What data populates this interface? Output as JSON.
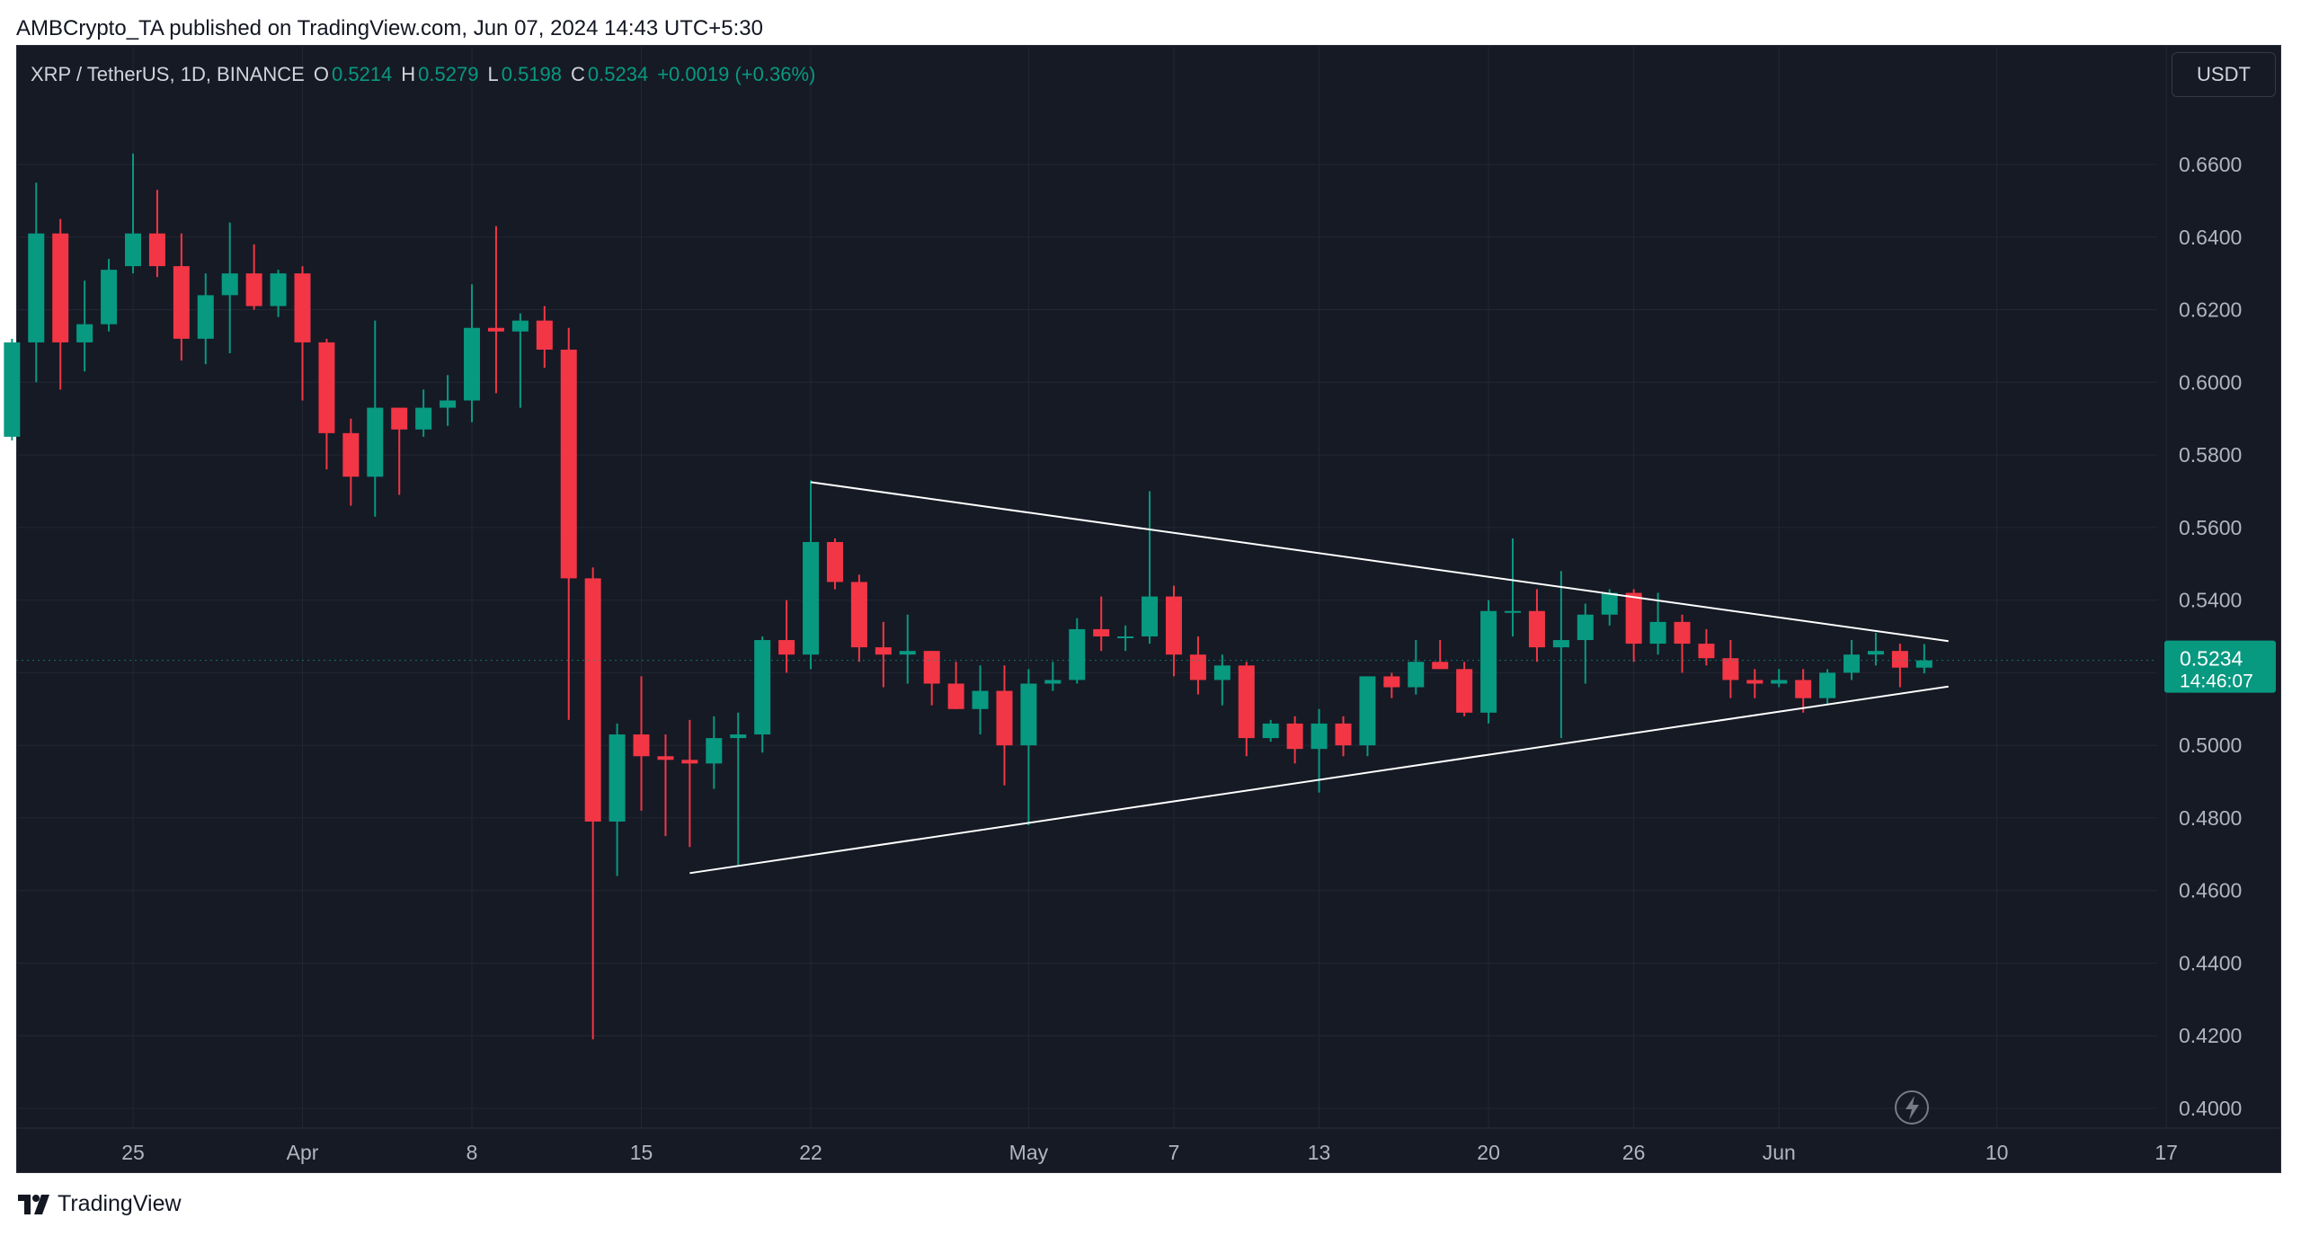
{
  "header": {
    "publisher_line": "AMBCrypto_TA published on TradingView.com, Jun 07, 2024 14:43 UTC+5:30"
  },
  "legend": {
    "symbol": "XRP / TetherUS, 1D, BINANCE",
    "o_label": "O",
    "o_value": "0.5214",
    "h_label": "H",
    "h_value": "0.5279",
    "l_label": "L",
    "l_value": "0.5198",
    "c_label": "C",
    "c_value": "0.5234",
    "change": "+0.0019 (+0.36%)"
  },
  "currency_button": "USDT",
  "price_badge": {
    "price": "0.5234",
    "countdown": "14:46:07"
  },
  "footer": {
    "brand": "TradingView"
  },
  "colors": {
    "background": "#161a25",
    "grid": "#232733",
    "up": "#089981",
    "down": "#f23645",
    "axis_text": "#b2b5be",
    "trendline": "#ffffff"
  },
  "chart_data": {
    "type": "candlestick",
    "symbol": "XRP / TetherUS",
    "interval": "1D",
    "exchange": "BINANCE",
    "ylim": [
      0.39,
      0.675
    ],
    "y_ticks": [
      "0.6600",
      "0.6400",
      "0.6200",
      "0.6000",
      "0.5800",
      "0.5600",
      "0.5400",
      "0.5200",
      "0.5000",
      "0.4800",
      "0.4600",
      "0.4400",
      "0.4200",
      "0.4000"
    ],
    "x_ticks": [
      {
        "label": "25",
        "date": "2024-03-25"
      },
      {
        "label": "Apr",
        "date": "2024-04-01"
      },
      {
        "label": "8",
        "date": "2024-04-08"
      },
      {
        "label": "15",
        "date": "2024-04-15"
      },
      {
        "label": "22",
        "date": "2024-04-22"
      },
      {
        "label": "May",
        "date": "2024-05-01"
      },
      {
        "label": "7",
        "date": "2024-05-07"
      },
      {
        "label": "13",
        "date": "2024-05-13"
      },
      {
        "label": "20",
        "date": "2024-05-20"
      },
      {
        "label": "26",
        "date": "2024-05-26"
      },
      {
        "label": "Jun",
        "date": "2024-06-01"
      },
      {
        "label": "10",
        "date": "2024-06-10"
      },
      {
        "label": "17",
        "date": "2024-06-17"
      }
    ],
    "candles": [
      {
        "date": "2024-03-20",
        "o": 0.585,
        "h": 0.612,
        "l": 0.584,
        "c": 0.611
      },
      {
        "date": "2024-03-21",
        "o": 0.611,
        "h": 0.655,
        "l": 0.6,
        "c": 0.641
      },
      {
        "date": "2024-03-22",
        "o": 0.641,
        "h": 0.645,
        "l": 0.598,
        "c": 0.611
      },
      {
        "date": "2024-03-23",
        "o": 0.611,
        "h": 0.628,
        "l": 0.603,
        "c": 0.616
      },
      {
        "date": "2024-03-24",
        "o": 0.616,
        "h": 0.634,
        "l": 0.614,
        "c": 0.631
      },
      {
        "date": "2024-03-25",
        "o": 0.632,
        "h": 0.663,
        "l": 0.63,
        "c": 0.641
      },
      {
        "date": "2024-03-26",
        "o": 0.641,
        "h": 0.653,
        "l": 0.629,
        "c": 0.632
      },
      {
        "date": "2024-03-27",
        "o": 0.632,
        "h": 0.641,
        "l": 0.606,
        "c": 0.612
      },
      {
        "date": "2024-03-28",
        "o": 0.612,
        "h": 0.63,
        "l": 0.605,
        "c": 0.624
      },
      {
        "date": "2024-03-29",
        "o": 0.624,
        "h": 0.644,
        "l": 0.608,
        "c": 0.63
      },
      {
        "date": "2024-03-30",
        "o": 0.63,
        "h": 0.638,
        "l": 0.62,
        "c": 0.621
      },
      {
        "date": "2024-03-31",
        "o": 0.621,
        "h": 0.631,
        "l": 0.618,
        "c": 0.63
      },
      {
        "date": "2024-04-01",
        "o": 0.63,
        "h": 0.632,
        "l": 0.595,
        "c": 0.611
      },
      {
        "date": "2024-04-02",
        "o": 0.611,
        "h": 0.612,
        "l": 0.576,
        "c": 0.586
      },
      {
        "date": "2024-04-03",
        "o": 0.586,
        "h": 0.59,
        "l": 0.566,
        "c": 0.574
      },
      {
        "date": "2024-04-04",
        "o": 0.574,
        "h": 0.617,
        "l": 0.563,
        "c": 0.593
      },
      {
        "date": "2024-04-05",
        "o": 0.593,
        "h": 0.593,
        "l": 0.569,
        "c": 0.587
      },
      {
        "date": "2024-04-06",
        "o": 0.587,
        "h": 0.598,
        "l": 0.585,
        "c": 0.593
      },
      {
        "date": "2024-04-07",
        "o": 0.593,
        "h": 0.602,
        "l": 0.588,
        "c": 0.595
      },
      {
        "date": "2024-04-08",
        "o": 0.595,
        "h": 0.627,
        "l": 0.589,
        "c": 0.615
      },
      {
        "date": "2024-04-09",
        "o": 0.615,
        "h": 0.643,
        "l": 0.597,
        "c": 0.614
      },
      {
        "date": "2024-04-10",
        "o": 0.614,
        "h": 0.619,
        "l": 0.593,
        "c": 0.617
      },
      {
        "date": "2024-04-11",
        "o": 0.617,
        "h": 0.621,
        "l": 0.604,
        "c": 0.609
      },
      {
        "date": "2024-04-12",
        "o": 0.609,
        "h": 0.615,
        "l": 0.507,
        "c": 0.546
      },
      {
        "date": "2024-04-13",
        "o": 0.546,
        "h": 0.549,
        "l": 0.419,
        "c": 0.479
      },
      {
        "date": "2024-04-14",
        "o": 0.479,
        "h": 0.506,
        "l": 0.464,
        "c": 0.503
      },
      {
        "date": "2024-04-15",
        "o": 0.503,
        "h": 0.519,
        "l": 0.482,
        "c": 0.497
      },
      {
        "date": "2024-04-16",
        "o": 0.497,
        "h": 0.503,
        "l": 0.475,
        "c": 0.496
      },
      {
        "date": "2024-04-17",
        "o": 0.496,
        "h": 0.507,
        "l": 0.472,
        "c": 0.495
      },
      {
        "date": "2024-04-18",
        "o": 0.495,
        "h": 0.508,
        "l": 0.488,
        "c": 0.502
      },
      {
        "date": "2024-04-19",
        "o": 0.502,
        "h": 0.509,
        "l": 0.467,
        "c": 0.503
      },
      {
        "date": "2024-04-20",
        "o": 0.503,
        "h": 0.53,
        "l": 0.498,
        "c": 0.529
      },
      {
        "date": "2024-04-21",
        "o": 0.529,
        "h": 0.54,
        "l": 0.52,
        "c": 0.525
      },
      {
        "date": "2024-04-22",
        "o": 0.525,
        "h": 0.573,
        "l": 0.521,
        "c": 0.556
      },
      {
        "date": "2024-04-23",
        "o": 0.556,
        "h": 0.557,
        "l": 0.543,
        "c": 0.545
      },
      {
        "date": "2024-04-24",
        "o": 0.545,
        "h": 0.547,
        "l": 0.523,
        "c": 0.527
      },
      {
        "date": "2024-04-25",
        "o": 0.527,
        "h": 0.534,
        "l": 0.516,
        "c": 0.525
      },
      {
        "date": "2024-04-26",
        "o": 0.525,
        "h": 0.536,
        "l": 0.517,
        "c": 0.526
      },
      {
        "date": "2024-04-27",
        "o": 0.526,
        "h": 0.526,
        "l": 0.511,
        "c": 0.517
      },
      {
        "date": "2024-04-28",
        "o": 0.517,
        "h": 0.523,
        "l": 0.51,
        "c": 0.51
      },
      {
        "date": "2024-04-29",
        "o": 0.51,
        "h": 0.522,
        "l": 0.503,
        "c": 0.515
      },
      {
        "date": "2024-04-30",
        "o": 0.515,
        "h": 0.522,
        "l": 0.489,
        "c": 0.5
      },
      {
        "date": "2024-05-01",
        "o": 0.5,
        "h": 0.521,
        "l": 0.478,
        "c": 0.517
      },
      {
        "date": "2024-05-02",
        "o": 0.517,
        "h": 0.523,
        "l": 0.515,
        "c": 0.518
      },
      {
        "date": "2024-05-03",
        "o": 0.518,
        "h": 0.535,
        "l": 0.517,
        "c": 0.532
      },
      {
        "date": "2024-05-04",
        "o": 0.532,
        "h": 0.541,
        "l": 0.526,
        "c": 0.53
      },
      {
        "date": "2024-05-05",
        "o": 0.53,
        "h": 0.533,
        "l": 0.526,
        "c": 0.53
      },
      {
        "date": "2024-05-06",
        "o": 0.53,
        "h": 0.57,
        "l": 0.528,
        "c": 0.541
      },
      {
        "date": "2024-05-07",
        "o": 0.541,
        "h": 0.544,
        "l": 0.519,
        "c": 0.525
      },
      {
        "date": "2024-05-08",
        "o": 0.525,
        "h": 0.53,
        "l": 0.514,
        "c": 0.518
      },
      {
        "date": "2024-05-09",
        "o": 0.518,
        "h": 0.525,
        "l": 0.511,
        "c": 0.522
      },
      {
        "date": "2024-05-10",
        "o": 0.522,
        "h": 0.523,
        "l": 0.497,
        "c": 0.502
      },
      {
        "date": "2024-05-11",
        "o": 0.502,
        "h": 0.507,
        "l": 0.501,
        "c": 0.506
      },
      {
        "date": "2024-05-12",
        "o": 0.506,
        "h": 0.508,
        "l": 0.495,
        "c": 0.499
      },
      {
        "date": "2024-05-13",
        "o": 0.499,
        "h": 0.51,
        "l": 0.487,
        "c": 0.506
      },
      {
        "date": "2024-05-14",
        "o": 0.506,
        "h": 0.508,
        "l": 0.497,
        "c": 0.5
      },
      {
        "date": "2024-05-15",
        "o": 0.5,
        "h": 0.519,
        "l": 0.497,
        "c": 0.519
      },
      {
        "date": "2024-05-16",
        "o": 0.519,
        "h": 0.52,
        "l": 0.513,
        "c": 0.516
      },
      {
        "date": "2024-05-17",
        "o": 0.516,
        "h": 0.529,
        "l": 0.514,
        "c": 0.523
      },
      {
        "date": "2024-05-18",
        "o": 0.523,
        "h": 0.529,
        "l": 0.521,
        "c": 0.521
      },
      {
        "date": "2024-05-19",
        "o": 0.521,
        "h": 0.523,
        "l": 0.508,
        "c": 0.509
      },
      {
        "date": "2024-05-20",
        "o": 0.509,
        "h": 0.54,
        "l": 0.506,
        "c": 0.537
      },
      {
        "date": "2024-05-21",
        "o": 0.537,
        "h": 0.557,
        "l": 0.53,
        "c": 0.537
      },
      {
        "date": "2024-05-22",
        "o": 0.537,
        "h": 0.543,
        "l": 0.523,
        "c": 0.527
      },
      {
        "date": "2024-05-23",
        "o": 0.527,
        "h": 0.548,
        "l": 0.502,
        "c": 0.529
      },
      {
        "date": "2024-05-24",
        "o": 0.529,
        "h": 0.539,
        "l": 0.517,
        "c": 0.536
      },
      {
        "date": "2024-05-25",
        "o": 0.536,
        "h": 0.543,
        "l": 0.533,
        "c": 0.542
      },
      {
        "date": "2024-05-26",
        "o": 0.542,
        "h": 0.543,
        "l": 0.523,
        "c": 0.528
      },
      {
        "date": "2024-05-27",
        "o": 0.528,
        "h": 0.542,
        "l": 0.525,
        "c": 0.534
      },
      {
        "date": "2024-05-28",
        "o": 0.534,
        "h": 0.536,
        "l": 0.52,
        "c": 0.528
      },
      {
        "date": "2024-05-29",
        "o": 0.528,
        "h": 0.532,
        "l": 0.522,
        "c": 0.524
      },
      {
        "date": "2024-05-30",
        "o": 0.524,
        "h": 0.529,
        "l": 0.513,
        "c": 0.518
      },
      {
        "date": "2024-05-31",
        "o": 0.518,
        "h": 0.521,
        "l": 0.513,
        "c": 0.517
      },
      {
        "date": "2024-06-01",
        "o": 0.517,
        "h": 0.521,
        "l": 0.516,
        "c": 0.518
      },
      {
        "date": "2024-06-02",
        "o": 0.518,
        "h": 0.521,
        "l": 0.509,
        "c": 0.513
      },
      {
        "date": "2024-06-03",
        "o": 0.513,
        "h": 0.521,
        "l": 0.511,
        "c": 0.52
      },
      {
        "date": "2024-06-04",
        "o": 0.52,
        "h": 0.529,
        "l": 0.518,
        "c": 0.525
      },
      {
        "date": "2024-06-05",
        "o": 0.525,
        "h": 0.531,
        "l": 0.522,
        "c": 0.526
      },
      {
        "date": "2024-06-06",
        "o": 0.526,
        "h": 0.528,
        "l": 0.516,
        "c": 0.5214
      },
      {
        "date": "2024-06-07",
        "o": 0.5214,
        "h": 0.5279,
        "l": 0.5198,
        "c": 0.5234
      }
    ],
    "trendlines": [
      {
        "name": "upper",
        "from": {
          "date": "2024-04-22",
          "price": 0.5725
        },
        "to": {
          "date": "2024-06-08",
          "price": 0.5287
        }
      },
      {
        "name": "lower",
        "from": {
          "date": "2024-04-17",
          "price": 0.4648
        },
        "to": {
          "date": "2024-06-08",
          "price": 0.5162
        }
      }
    ],
    "last_price": 0.5234,
    "grid": true
  }
}
